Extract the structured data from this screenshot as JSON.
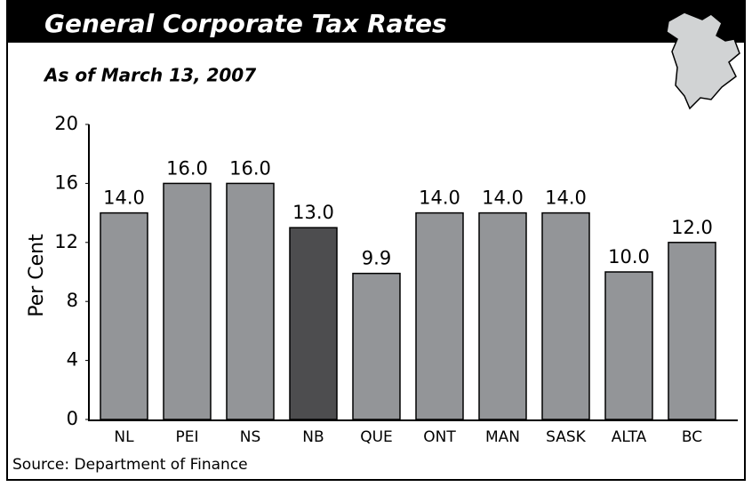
{
  "chart_data": {
    "type": "bar",
    "title": "General Corporate Tax Rates",
    "subtitle": "As of March 13, 2007",
    "y_label": "Per Cent",
    "source": "Source: Department of Finance",
    "categories": [
      "NL",
      "PEI",
      "NS",
      "NB",
      "QUE",
      "ONT",
      "MAN",
      "SASK",
      "ALTA",
      "BC"
    ],
    "values": [
      14,
      16,
      16,
      13,
      9.9,
      14,
      14,
      14,
      10,
      12
    ],
    "value_labels": [
      "14.0",
      "16.0",
      "16.0",
      "13.0",
      "9.9",
      "14.0",
      "14.0",
      "14.0",
      "10.0",
      "12.0"
    ],
    "colors": [
      "#939598",
      "#939598",
      "#939598",
      "#4d4d4f",
      "#939598",
      "#939598",
      "#939598",
      "#939598",
      "#939598",
      "#939598"
    ],
    "ylim": [
      0,
      20
    ],
    "yticks": [
      0,
      4,
      8,
      12,
      16,
      20
    ]
  }
}
